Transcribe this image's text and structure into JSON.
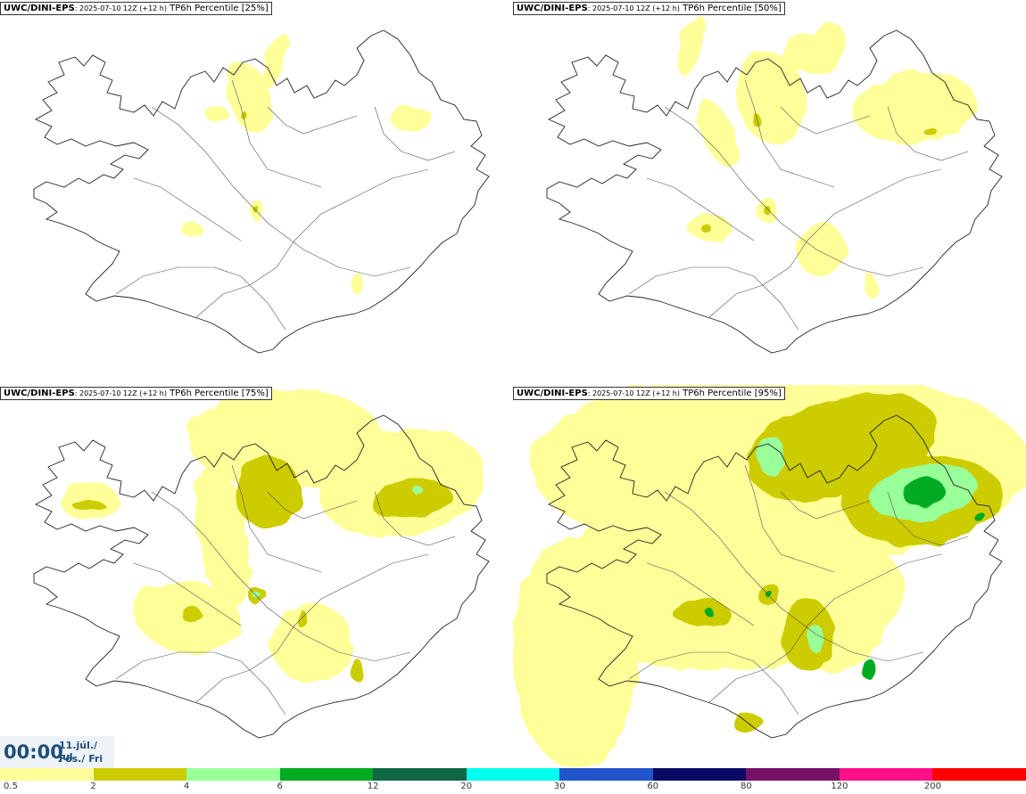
{
  "panels": [
    {
      "model": "UWC/DINI-EPS",
      "run": ": 2025-07-10 12Z (+12 h)",
      "field": " TP6h Percentile [25%]",
      "level": 25
    },
    {
      "model": "UWC/DINI-EPS",
      "run": ": 2025-07-10 12Z (+12 h)",
      "field": " TP6h Percentile [50%]",
      "level": 50
    },
    {
      "model": "UWC/DINI-EPS",
      "run": ": 2025-07-10 12Z (+12 h)",
      "field": " TP6h Percentile [75%]",
      "level": 75
    },
    {
      "model": "UWC/DINI-EPS",
      "run": ": 2025-07-10 12Z (+12 h)",
      "field": " TP6h Percentile [95%]",
      "level": 95
    }
  ],
  "time": {
    "clock": "00:00",
    "date_line1": "11.júl./ Jul",
    "date_line2": "Fös./ Fri"
  },
  "legend": {
    "labels": [
      "0.5",
      "2",
      "4",
      "6",
      "12",
      "20",
      "30",
      "60",
      "80",
      "120",
      "200"
    ],
    "colors": [
      "#ffff99",
      "#cccc00",
      "#99ff99",
      "#00aa22",
      "#116644",
      "#00ffee",
      "#2255cc",
      "#0a0a66",
      "#771166",
      "#ff1188",
      "#ff0000"
    ]
  }
}
